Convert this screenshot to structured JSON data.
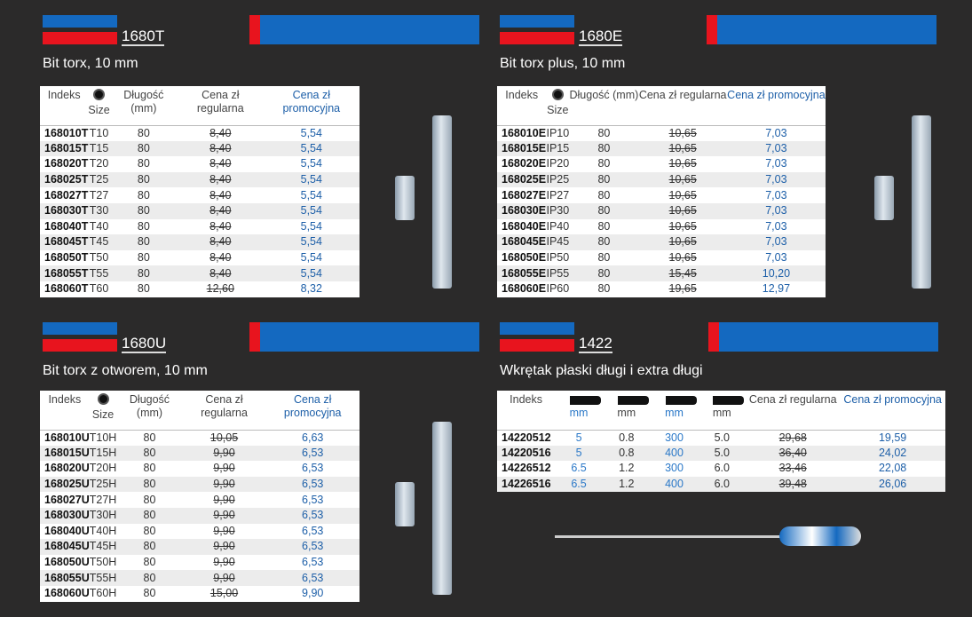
{
  "sections": [
    {
      "code": "1680T",
      "subtitle": "Bit torx, 10 mm",
      "headers": [
        "Indeks",
        "Size",
        "Długość (mm)",
        "Cena zł regularna",
        "Cena zł promocyjna"
      ],
      "rows": [
        [
          "168010T",
          "T10",
          "80",
          "8,40",
          "5,54"
        ],
        [
          "168015T",
          "T15",
          "80",
          "8,40",
          "5,54"
        ],
        [
          "168020T",
          "T20",
          "80",
          "8,40",
          "5,54"
        ],
        [
          "168025T",
          "T25",
          "80",
          "8,40",
          "5,54"
        ],
        [
          "168027T",
          "T27",
          "80",
          "8,40",
          "5,54"
        ],
        [
          "168030T",
          "T30",
          "80",
          "8,40",
          "5,54"
        ],
        [
          "168040T",
          "T40",
          "80",
          "8,40",
          "5,54"
        ],
        [
          "168045T",
          "T45",
          "80",
          "8,40",
          "5,54"
        ],
        [
          "168050T",
          "T50",
          "80",
          "8,40",
          "5,54"
        ],
        [
          "168055T",
          "T55",
          "80",
          "8,40",
          "5,54"
        ],
        [
          "168060T",
          "T60",
          "80",
          "12,60",
          "8,32"
        ]
      ]
    },
    {
      "code": "1680E",
      "subtitle": "Bit torx plus, 10 mm",
      "headers": [
        "Indeks",
        "Size",
        "Długość (mm)",
        "Cena zł regularna",
        "Cena zł promocyjna"
      ],
      "rows": [
        [
          "168010E",
          "IP10",
          "80",
          "10,65",
          "7,03"
        ],
        [
          "168015E",
          "IP15",
          "80",
          "10,65",
          "7,03"
        ],
        [
          "168020E",
          "IP20",
          "80",
          "10,65",
          "7,03"
        ],
        [
          "168025E",
          "IP25",
          "80",
          "10,65",
          "7,03"
        ],
        [
          "168027E",
          "IP27",
          "80",
          "10,65",
          "7,03"
        ],
        [
          "168030E",
          "IP30",
          "80",
          "10,65",
          "7,03"
        ],
        [
          "168040E",
          "IP40",
          "80",
          "10,65",
          "7,03"
        ],
        [
          "168045E",
          "IP45",
          "80",
          "10,65",
          "7,03"
        ],
        [
          "168050E",
          "IP50",
          "80",
          "10,65",
          "7,03"
        ],
        [
          "168055E",
          "IP55",
          "80",
          "15,45",
          "10,20"
        ],
        [
          "168060E",
          "IP60",
          "80",
          "19,65",
          "12,97"
        ]
      ]
    },
    {
      "code": "1680U",
      "subtitle": "Bit torx z otworem, 10 mm",
      "headers": [
        "Indeks",
        "Size",
        "Długość (mm)",
        "Cena zł regularna",
        "Cena zł promocyjna"
      ],
      "rows": [
        [
          "168010U",
          "T10H",
          "80",
          "10,05",
          "6,63"
        ],
        [
          "168015U",
          "T15H",
          "80",
          "9,90",
          "6,53"
        ],
        [
          "168020U",
          "T20H",
          "80",
          "9,90",
          "6,53"
        ],
        [
          "168025U",
          "T25H",
          "80",
          "9,90",
          "6,53"
        ],
        [
          "168027U",
          "T27H",
          "80",
          "9,90",
          "6,53"
        ],
        [
          "168030U",
          "T30H",
          "80",
          "9,90",
          "6,53"
        ],
        [
          "168040U",
          "T40H",
          "80",
          "9,90",
          "6,53"
        ],
        [
          "168045U",
          "T45H",
          "80",
          "9,90",
          "6,53"
        ],
        [
          "168050U",
          "T50H",
          "80",
          "9,90",
          "6,53"
        ],
        [
          "168055U",
          "T55H",
          "80",
          "9,90",
          "6,53"
        ],
        [
          "168060U",
          "T60H",
          "80",
          "15,00",
          "9,90"
        ]
      ]
    },
    {
      "code": "1422",
      "subtitle": "Wkrętak płaski długi i extra długi",
      "headers": [
        "Indeks",
        "mm",
        "mm",
        "mm",
        "mm",
        "Cena zł regularna",
        "Cena zł promocyjna"
      ],
      "rows": [
        [
          "14220512",
          "5",
          "0.8",
          "300",
          "5.0",
          "29,68",
          "19,59"
        ],
        [
          "14220516",
          "5",
          "0.8",
          "400",
          "5.0",
          "36,40",
          "24,02"
        ],
        [
          "14226512",
          "6.5",
          "1.2",
          "300",
          "6.0",
          "33,46",
          "22,08"
        ],
        [
          "14226516",
          "6.5",
          "1.2",
          "400",
          "6.0",
          "39,48",
          "26,06"
        ]
      ]
    }
  ],
  "colors": {
    "blue": "#1469c0",
    "red": "#e8141e",
    "background": "#2b2a2a"
  }
}
